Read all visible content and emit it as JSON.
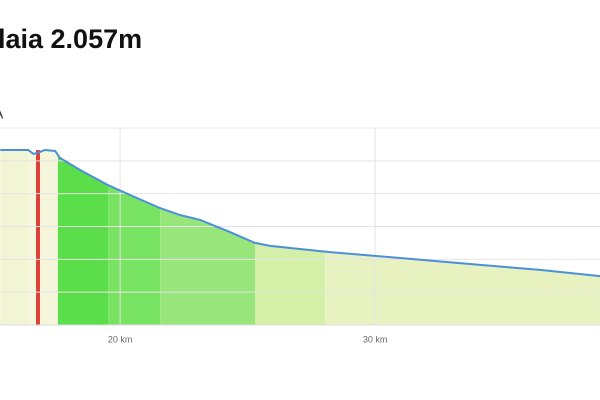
{
  "chart_data": {
    "type": "area",
    "title": "laia 2.057m",
    "annotations": [
      "A"
    ],
    "line_color": "#4a90d9",
    "x": [
      15.3,
      16.4,
      16.6,
      16.86,
      17.05,
      17.45,
      17.64,
      18.43,
      19.53,
      20.39,
      21.57,
      22.35,
      23.14,
      24.31,
      25.29,
      25.88,
      28.23,
      30.98,
      34.12,
      36.47,
      38.82
    ],
    "values": [
      5.33,
      5.33,
      5.21,
      5.27,
      5.33,
      5.3,
      5.09,
      4.72,
      4.26,
      3.96,
      3.56,
      3.35,
      3.2,
      2.83,
      2.5,
      2.41,
      2.22,
      2.04,
      1.83,
      1.68,
      1.49
    ],
    "segments": [
      {
        "start": 15.29,
        "end": 16.39,
        "color": "#f1f5d3"
      },
      {
        "start": 16.39,
        "end": 17.56,
        "color": "#f6f6dc"
      },
      {
        "start": 17.56,
        "end": 19.53,
        "color": "#5cdd4a"
      },
      {
        "start": 19.53,
        "end": 21.57,
        "color": "#78e262"
      },
      {
        "start": 21.57,
        "end": 25.29,
        "color": "#98e57b"
      },
      {
        "start": 25.29,
        "end": 28.04,
        "color": "#d4f0a8"
      },
      {
        "start": 28.04,
        "end": 38.82,
        "color": "#e8f2c0"
      }
    ],
    "marker": {
      "x": 16.78,
      "color": "#e0403a"
    },
    "xlim": [
      15.29,
      38.82
    ],
    "xticks": [
      {
        "value": 20,
        "label": "20 km"
      },
      {
        "value": 30,
        "label": "30 km"
      }
    ],
    "ylim": [
      0,
      6
    ],
    "ygrid": [
      1,
      2,
      3,
      4,
      5,
      6
    ],
    "grid": true
  }
}
